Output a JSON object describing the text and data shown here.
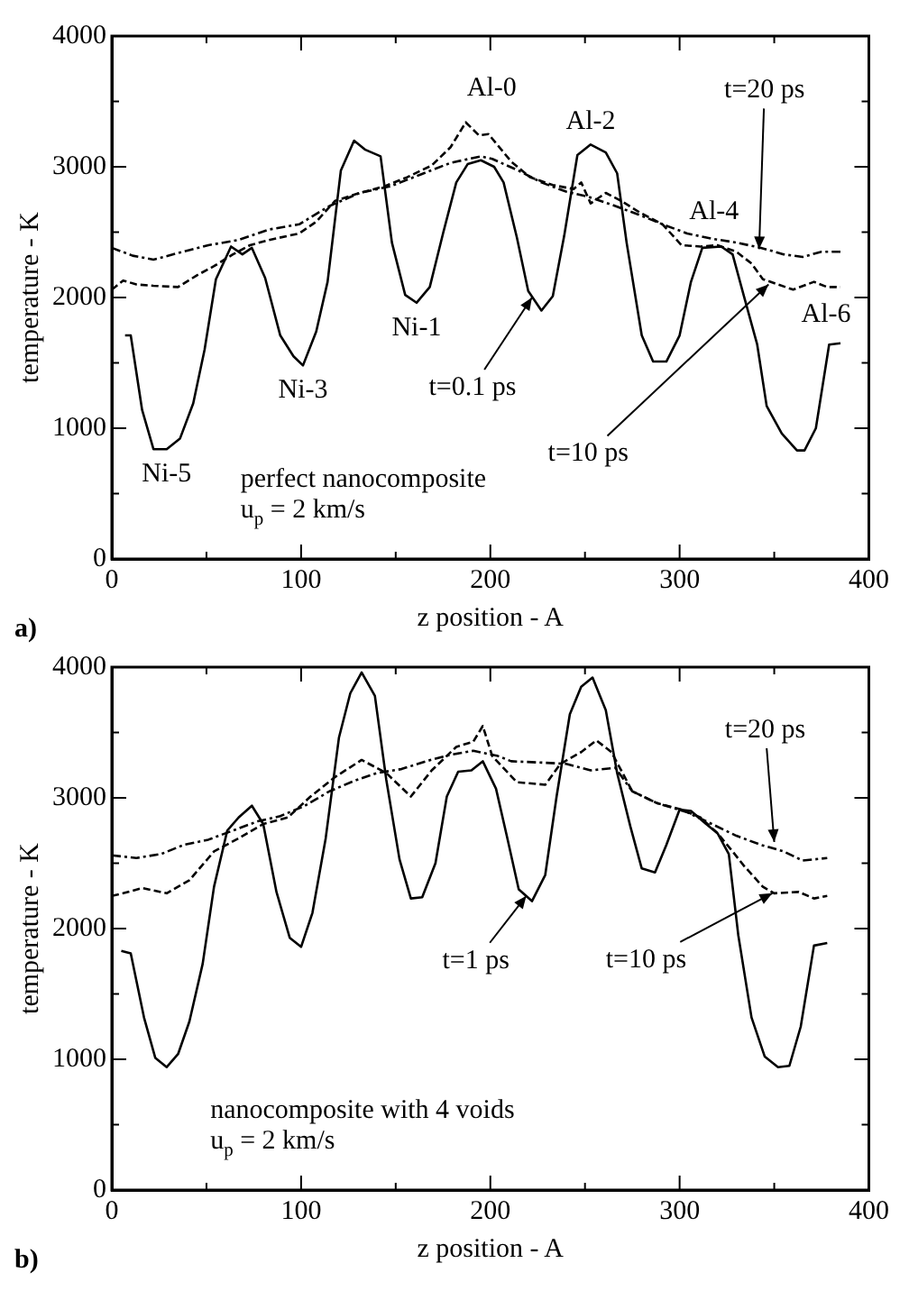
{
  "chart_data": [
    {
      "type": "line",
      "title": "a)",
      "xlabel": "z position - A",
      "ylabel": "temperature - K",
      "xlim": [
        0,
        400
      ],
      "xticks": [
        0,
        {
          "value": 50,
          "label": null
        },
        100,
        {
          "value": 150,
          "label": null
        },
        200,
        {
          "value": 250,
          "label": null
        },
        300,
        {
          "value": 350,
          "label": null
        },
        400
      ],
      "ylim": [
        0,
        4000
      ],
      "yticks": [
        0,
        {
          "value": 500,
          "label": null
        },
        1000,
        {
          "value": 1500,
          "label": null
        },
        2000,
        {
          "value": 2500,
          "label": null
        },
        3000,
        {
          "value": 3500,
          "label": null
        },
        4000
      ],
      "legend": false,
      "marker": "none",
      "series": [
        {
          "color": "#000000",
          "line_style": "solid",
          "x": [
            7,
            10,
            16,
            22,
            29,
            36,
            43,
            49,
            55,
            63,
            69,
            74,
            81,
            89,
            96,
            101,
            108,
            114,
            121,
            128,
            134,
            142,
            148,
            155,
            161,
            168,
            175,
            182,
            188,
            195,
            202,
            207,
            214,
            220,
            227,
            233,
            239,
            246,
            253,
            261,
            267,
            272,
            280,
            286,
            293,
            300,
            306,
            312,
            322,
            328,
            334,
            341,
            346,
            354,
            362,
            366,
            372,
            379,
            385
          ],
          "values": [
            1710,
            1710,
            1140,
            840,
            840,
            920,
            1190,
            1600,
            2140,
            2390,
            2330,
            2380,
            2150,
            1710,
            1550,
            1480,
            1740,
            2120,
            2970,
            3200,
            3130,
            3080,
            2420,
            2020,
            1960,
            2080,
            2490,
            2880,
            3020,
            3050,
            3000,
            2880,
            2460,
            2050,
            1900,
            2010,
            2470,
            3090,
            3170,
            3110,
            2950,
            2420,
            1710,
            1510,
            1510,
            1710,
            2120,
            2380,
            2390,
            2330,
            2010,
            1640,
            1170,
            960,
            830,
            830,
            1000,
            1640,
            1650
          ]
        },
        {
          "color": "#000000",
          "line_style": "dashed",
          "x": [
            0,
            6,
            13,
            22,
            35,
            45,
            54,
            64,
            73,
            83,
            99,
            108,
            118,
            131,
            144,
            156,
            169,
            179,
            187,
            194,
            199,
            211,
            221,
            233,
            244,
            248,
            253,
            261,
            269,
            279,
            291,
            301,
            311,
            320,
            330,
            338,
            344,
            352,
            360,
            371,
            378,
            385
          ],
          "values": [
            2060,
            2130,
            2100,
            2090,
            2080,
            2170,
            2240,
            2330,
            2400,
            2440,
            2490,
            2580,
            2740,
            2800,
            2850,
            2920,
            3010,
            3150,
            3340,
            3240,
            3250,
            3040,
            2920,
            2860,
            2830,
            2880,
            2720,
            2800,
            2740,
            2650,
            2560,
            2400,
            2390,
            2400,
            2350,
            2260,
            2140,
            2100,
            2060,
            2120,
            2080,
            2080
          ]
        },
        {
          "color": "#000000",
          "line_style": "dotted",
          "x": [
            0,
            11,
            22,
            35,
            51,
            67,
            83,
            99,
            115,
            131,
            147,
            163,
            179,
            195,
            201,
            215,
            227,
            240,
            252,
            266,
            279,
            291,
            304,
            317,
            330,
            343,
            355,
            365,
            375,
            385
          ],
          "values": [
            2380,
            2320,
            2290,
            2340,
            2400,
            2440,
            2520,
            2560,
            2700,
            2800,
            2850,
            2940,
            3030,
            3080,
            3060,
            2970,
            2880,
            2810,
            2770,
            2700,
            2630,
            2560,
            2490,
            2450,
            2420,
            2380,
            2330,
            2310,
            2350,
            2350
          ]
        }
      ],
      "annotations": [
        {
          "text": "Ni-5",
          "x": 29,
          "y": 840
        },
        {
          "text": "Ni-3",
          "x": 101,
          "y": 1480
        },
        {
          "text": "Ni-1",
          "x": 161,
          "y": 1960
        },
        {
          "text": "Al-0",
          "x": 195,
          "y": 3050
        },
        {
          "text": "Al-2",
          "x": 253,
          "y": 3165
        },
        {
          "text": "Al-4",
          "x": 322,
          "y": 2390
        },
        {
          "text": "Al-6",
          "x": 385,
          "y": 1650
        },
        {
          "text": "t=0.1 ps",
          "x": 222,
          "y": 2000
        },
        {
          "text": "t=10 ps",
          "x": 347,
          "y": 2100
        },
        {
          "text": "t=20 ps",
          "x": 342,
          "y": 2370
        },
        "perfect nanocomposite",
        "u$_{p}$ = 2 km/s"
      ]
    },
    {
      "type": "line",
      "title": "b)",
      "xlabel": "z position - A",
      "ylabel": "temperature - K",
      "xlim": [
        0,
        400
      ],
      "xticks": [
        0,
        {
          "value": 50,
          "label": null
        },
        100,
        {
          "value": 150,
          "label": null
        },
        200,
        {
          "value": 250,
          "label": null
        },
        300,
        {
          "value": 350,
          "label": null
        },
        400
      ],
      "ylim": [
        0,
        4000
      ],
      "yticks": [
        0,
        {
          "value": 500,
          "label": null
        },
        1000,
        {
          "value": 1500,
          "label": null
        },
        2000,
        {
          "value": 2500,
          "label": null
        },
        3000,
        {
          "value": 3500,
          "label": null
        },
        4000
      ],
      "legend": false,
      "marker": "none",
      "series": [
        {
          "color": "#000000",
          "line_style": "solid",
          "x": [
            5,
            10,
            17,
            23,
            29,
            35,
            41,
            48,
            54,
            61,
            67,
            74,
            80,
            87,
            94,
            100,
            106,
            113,
            120,
            126,
            132,
            139,
            145,
            152,
            158,
            164,
            171,
            177,
            183,
            190,
            196,
            203,
            209,
            215,
            222,
            229,
            235,
            242,
            248,
            254,
            261,
            267,
            274,
            280,
            287,
            293,
            300,
            306,
            314,
            320,
            326,
            331,
            338,
            345,
            352,
            358,
            364,
            371,
            378
          ],
          "values": [
            1830,
            1810,
            1320,
            1010,
            940,
            1040,
            1290,
            1730,
            2320,
            2750,
            2850,
            2940,
            2800,
            2280,
            1930,
            1860,
            2120,
            2690,
            3460,
            3800,
            3960,
            3780,
            3140,
            2530,
            2230,
            2240,
            2500,
            3010,
            3200,
            3210,
            3280,
            3070,
            2690,
            2300,
            2210,
            2410,
            3010,
            3640,
            3850,
            3920,
            3670,
            3190,
            2780,
            2460,
            2430,
            2640,
            2910,
            2900,
            2800,
            2730,
            2570,
            1950,
            1320,
            1020,
            940,
            950,
            1250,
            1870,
            1890
          ]
        },
        {
          "color": "#000000",
          "line_style": "dashed",
          "x": [
            0,
            6,
            16,
            29,
            41,
            54,
            67,
            80,
            93,
            105,
            118,
            132,
            145,
            158,
            169,
            182,
            191,
            196,
            201,
            214,
            229,
            237,
            248,
            256,
            264,
            275,
            288,
            301,
            311,
            320,
            328,
            334,
            344,
            350,
            363,
            371,
            378
          ],
          "values": [
            2250,
            2270,
            2310,
            2270,
            2370,
            2590,
            2690,
            2800,
            2850,
            3010,
            3160,
            3290,
            3190,
            3010,
            3210,
            3390,
            3430,
            3550,
            3320,
            3120,
            3100,
            3260,
            3350,
            3440,
            3350,
            3050,
            2960,
            2910,
            2850,
            2730,
            2590,
            2480,
            2320,
            2270,
            2280,
            2230,
            2250
          ]
        },
        {
          "color": "#000000",
          "line_style": "dotted",
          "x": [
            0,
            13,
            26,
            38,
            51,
            64,
            77,
            89,
            102,
            115,
            128,
            140,
            153,
            166,
            179,
            191,
            204,
            211,
            227,
            240,
            253,
            266,
            275,
            288,
            304,
            317,
            330,
            343,
            355,
            365,
            378
          ],
          "values": [
            2560,
            2540,
            2570,
            2640,
            2680,
            2750,
            2820,
            2860,
            2940,
            3050,
            3130,
            3190,
            3220,
            3280,
            3330,
            3360,
            3320,
            3280,
            3270,
            3260,
            3210,
            3230,
            3050,
            2960,
            2890,
            2800,
            2710,
            2640,
            2590,
            2520,
            2540
          ]
        }
      ],
      "annotations": [
        {
          "text": "t=1 ps",
          "x": 219,
          "y": 2250
        },
        {
          "text": "t=10 ps",
          "x": 349,
          "y": 2270
        },
        {
          "text": "t=20 ps",
          "x": 350,
          "y": 2662
        },
        "nanocomposite with 4 voids",
        "u$_{p}$ = 2 km/s"
      ]
    }
  ]
}
